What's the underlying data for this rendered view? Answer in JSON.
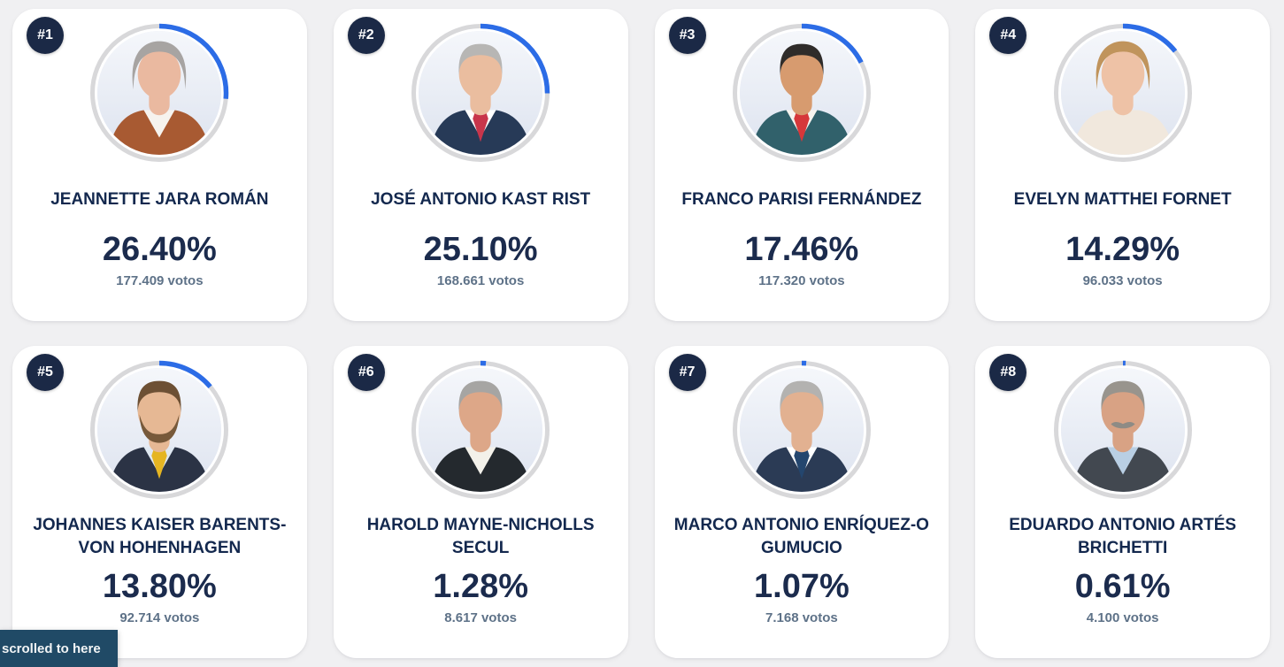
{
  "page": {
    "background": "#f0f0f2",
    "scroll_marker_label": "scrolled to here",
    "scroll_marker_color": "#204a66"
  },
  "colors": {
    "card_background": "#ffffff",
    "rank_badge_background": "#1b2946",
    "rank_badge_text": "#ffffff",
    "progress_track": "#d8d8da",
    "progress_fill_blue": "#2c6ce6",
    "candidate_name_text": "#13284e",
    "percent_text": "#1b2b4d",
    "votes_text": "#5e7288"
  },
  "candidates": [
    {
      "rank": "#1",
      "name": "JEANNETTE JARA ROMÁN",
      "percent": "26.40%",
      "votes": "177.409 votos",
      "photo": {
        "hair": "#a7a4a2",
        "skin": "#eab9a0",
        "jacket": "#a85a32",
        "shirt": "#f6f3ee",
        "tie": null,
        "style": "female",
        "beard": null,
        "mustache": null
      }
    },
    {
      "rank": "#2",
      "name": "JOSÉ ANTONIO KAST RIST",
      "percent": "25.10%",
      "votes": "168.661 votos",
      "photo": {
        "hair": "#b7b6b4",
        "skin": "#eabd9f",
        "jacket": "#273a57",
        "shirt": "#ffffff",
        "tie": "#c8354b",
        "style": "male",
        "beard": null,
        "mustache": null
      }
    },
    {
      "rank": "#3",
      "name": "FRANCO PARISI FERNÁNDEZ",
      "percent": "17.46%",
      "votes": "117.320 votos",
      "photo": {
        "hair": "#2f2c2a",
        "skin": "#d79b6f",
        "jacket": "#31616b",
        "shirt": "#f6f4ef",
        "tie": "#d6373a",
        "style": "male",
        "beard": null,
        "mustache": null
      }
    },
    {
      "rank": "#4",
      "name": "EVELYN MATTHEI FORNET",
      "percent": "14.29%",
      "votes": "96.033 votos",
      "photo": {
        "hair": "#c0945c",
        "skin": "#eec2a6",
        "jacket": "#f1e8dd",
        "shirt": null,
        "tie": null,
        "style": "female",
        "beard": null,
        "mustache": null
      }
    },
    {
      "rank": "#5",
      "name": "JOHANNES KAISER BARENTS-VON HOHENHAGEN",
      "percent": "13.80%",
      "votes": "92.714 votos",
      "photo": {
        "hair": "#6d5034",
        "skin": "#e6b894",
        "jacket": "#2b3345",
        "shirt": "#dfe8f2",
        "tie": "#e5b522",
        "style": "male",
        "beard": "#77593a",
        "mustache": null
      }
    },
    {
      "rank": "#6",
      "name": "HAROLD MAYNE-NICHOLLS SECUL",
      "percent": "1.28%",
      "votes": "8.617 votos",
      "photo": {
        "hair": "#a6a5a3",
        "skin": "#dda788",
        "jacket": "#24292e",
        "shirt": "#f3f1ea",
        "tie": null,
        "style": "male",
        "beard": null,
        "mustache": null
      }
    },
    {
      "rank": "#7",
      "name": "MARCO ANTONIO ENRÍQUEZ-O GUMUCIO",
      "percent": "1.07%",
      "votes": "7.168 votos",
      "photo": {
        "hair": "#b3b2b0",
        "skin": "#e2b191",
        "jacket": "#2b3b55",
        "shirt": "#ffffff",
        "tie": "#24466e",
        "style": "male",
        "beard": null,
        "mustache": null
      }
    },
    {
      "rank": "#8",
      "name": "EDUARDO ANTONIO ARTÉS BRICHETTI",
      "percent": "0.61%",
      "votes": "4.100 votos",
      "photo": {
        "hair": "#98948d",
        "skin": "#d8a284",
        "jacket": "#424850",
        "shirt": "#b9cfe4",
        "tie": null,
        "style": "male",
        "beard": null,
        "mustache": "#8e8b85"
      }
    }
  ]
}
